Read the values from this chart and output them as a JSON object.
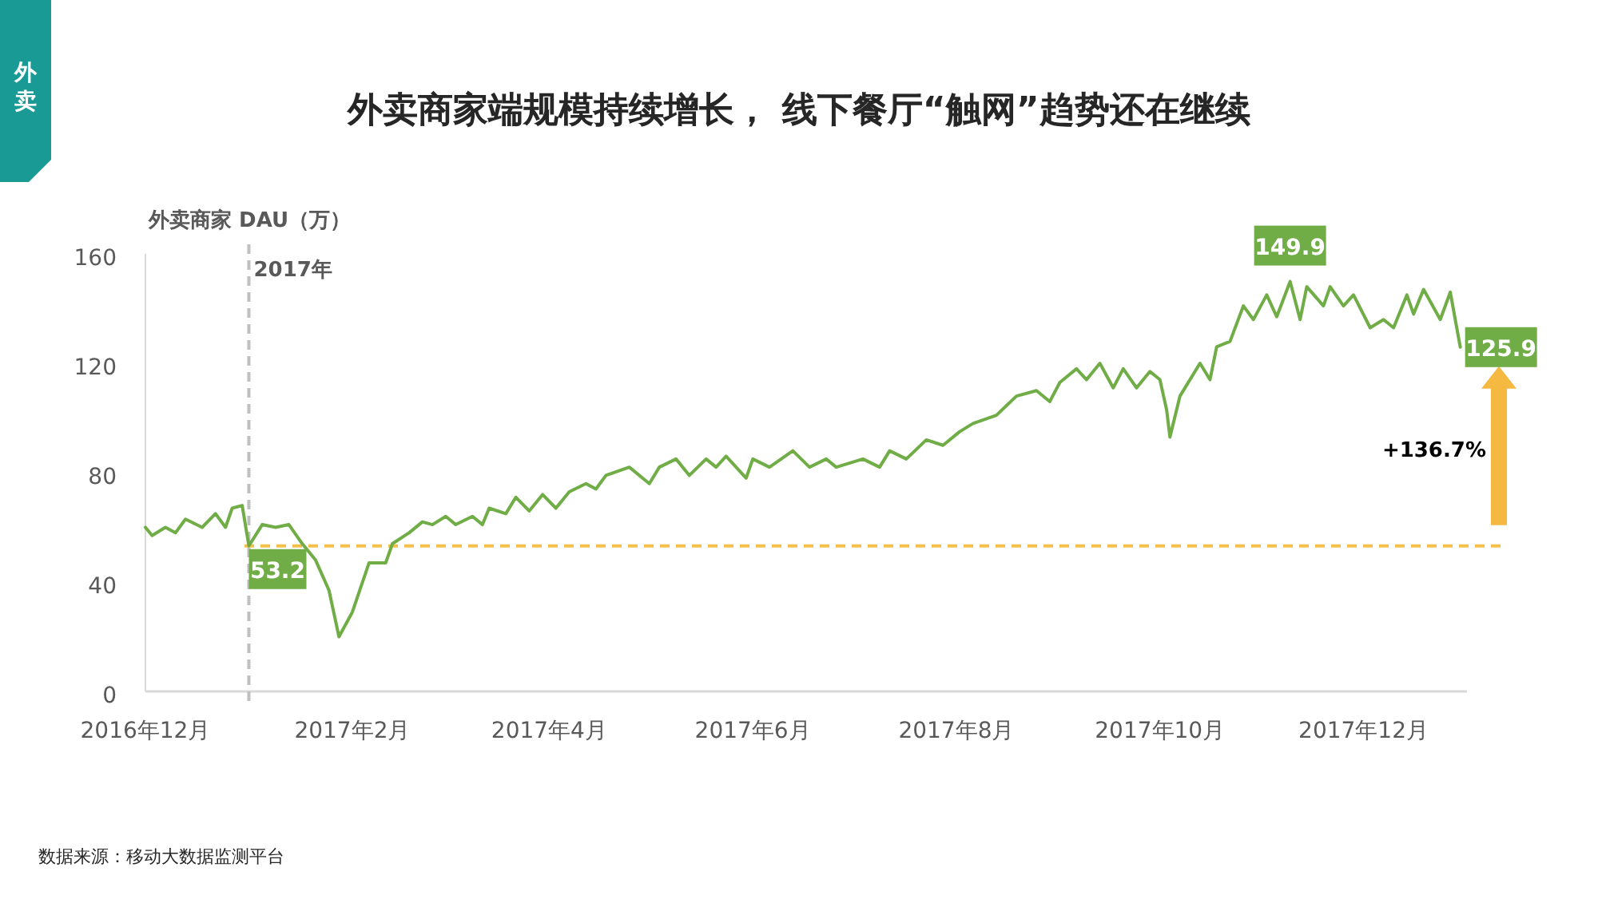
{
  "chart_data": {
    "type": "line",
    "title": "外卖商家端规模持续增长， 线下餐厅“触网”趋势还在继续",
    "ylabel": "外卖商家 DAU（万）",
    "x": [
      "2016-12-01",
      "2016-12-03",
      "2016-12-07",
      "2016-12-10",
      "2016-12-13",
      "2016-12-18",
      "2016-12-22",
      "2016-12-25",
      "2016-12-27",
      "2016-12-30",
      "2017-01-01",
      "2017-01-05",
      "2017-01-09",
      "2017-01-13",
      "2017-01-17",
      "2017-01-21",
      "2017-01-25",
      "2017-01-28",
      "2017-02-01",
      "2017-02-06",
      "2017-02-11",
      "2017-02-13",
      "2017-02-18",
      "2017-02-22",
      "2017-02-25",
      "2017-03-01",
      "2017-03-04",
      "2017-03-09",
      "2017-03-12",
      "2017-03-14",
      "2017-03-19",
      "2017-03-22",
      "2017-03-26",
      "2017-03-30",
      "2017-04-03",
      "2017-04-07",
      "2017-04-12",
      "2017-04-15",
      "2017-04-18",
      "2017-04-25",
      "2017-05-01",
      "2017-05-04",
      "2017-05-09",
      "2017-05-13",
      "2017-05-18",
      "2017-05-21",
      "2017-05-24",
      "2017-05-30",
      "2017-06-01",
      "2017-06-06",
      "2017-06-13",
      "2017-06-18",
      "2017-06-23",
      "2017-06-26",
      "2017-07-04",
      "2017-07-09",
      "2017-07-12",
      "2017-07-17",
      "2017-07-23",
      "2017-07-28",
      "2017-08-02",
      "2017-08-06",
      "2017-08-13",
      "2017-08-19",
      "2017-08-25",
      "2017-08-29",
      "2017-09-01",
      "2017-09-06",
      "2017-09-09",
      "2017-09-13",
      "2017-09-17",
      "2017-09-20",
      "2017-09-24",
      "2017-09-28",
      "2017-10-01",
      "2017-10-03",
      "2017-10-04",
      "2017-10-07",
      "2017-10-13",
      "2017-10-16",
      "2017-10-18",
      "2017-10-22",
      "2017-10-26",
      "2017-10-29",
      "2017-11-02",
      "2017-11-05",
      "2017-11-09",
      "2017-11-12",
      "2017-11-14",
      "2017-11-19",
      "2017-11-21",
      "2017-11-25",
      "2017-11-28",
      "2017-12-03",
      "2017-12-07",
      "2017-12-10",
      "2017-12-14",
      "2017-12-16",
      "2017-12-19",
      "2017-12-24",
      "2017-12-27",
      "2017-12-30"
    ],
    "series": [
      {
        "color": "#70ad47",
        "values": [
          60,
          57,
          60,
          58,
          63,
          60,
          65,
          60,
          67,
          68,
          53.2,
          61,
          60,
          61,
          54,
          48,
          37,
          20,
          29,
          47,
          47,
          54,
          58,
          62,
          61,
          64,
          61,
          64,
          61,
          67,
          65,
          71,
          66,
          72,
          67,
          73,
          76,
          74,
          79,
          82,
          76,
          82,
          85,
          79,
          85,
          82,
          86,
          78,
          85,
          82,
          88,
          82,
          85,
          82,
          85,
          82,
          88,
          85,
          92,
          90,
          95,
          98,
          101,
          108,
          110,
          106,
          113,
          118,
          114,
          120,
          111,
          118,
          111,
          117,
          114,
          103,
          93,
          108,
          120,
          114,
          126,
          128,
          141,
          136,
          145,
          137,
          149.9,
          136,
          148,
          141,
          148,
          141,
          145,
          133,
          136,
          133,
          145,
          138,
          147,
          136,
          146,
          125.9
        ]
      }
    ],
    "xlim": [
      "2016-12-01",
      "2018-01-01"
    ],
    "xticks": [
      {
        "value": "2016-12-01",
        "label": "2016年12月"
      },
      {
        "value": "2017-02-01",
        "label": "2017年2月"
      },
      {
        "value": "2017-04-01",
        "label": "2017年4月"
      },
      {
        "value": "2017-06-01",
        "label": "2017年6月"
      },
      {
        "value": "2017-08-01",
        "label": "2017年8月"
      },
      {
        "value": "2017-10-01",
        "label": "2017年10月"
      },
      {
        "value": "2017-12-01",
        "label": "2017年12月"
      }
    ],
    "ylim": [
      0,
      160
    ],
    "yticks": [
      0,
      40,
      80,
      120,
      160
    ],
    "grid": false,
    "marker": "none",
    "line_style": "solid",
    "ref_lines": [
      {
        "axis": "x",
        "value": "2017-01-01",
        "label": "2017年",
        "color": "#bfbfbf",
        "line_style": "dashed"
      },
      {
        "axis": "y",
        "value": 53.2,
        "color": "#f5c04a",
        "line_style": "dashed"
      }
    ],
    "annotations": [
      "外卖",
      "数据来源：移动大数据监测平台",
      "+136.7%",
      {
        "text": "53.2",
        "x": "2017-01-01",
        "y": 53.2
      },
      {
        "text": "149.9",
        "x": "2017-11-09",
        "y": 149.9
      },
      {
        "text": "125.9",
        "x": "2017-12-30",
        "y": 125.9
      }
    ]
  }
}
